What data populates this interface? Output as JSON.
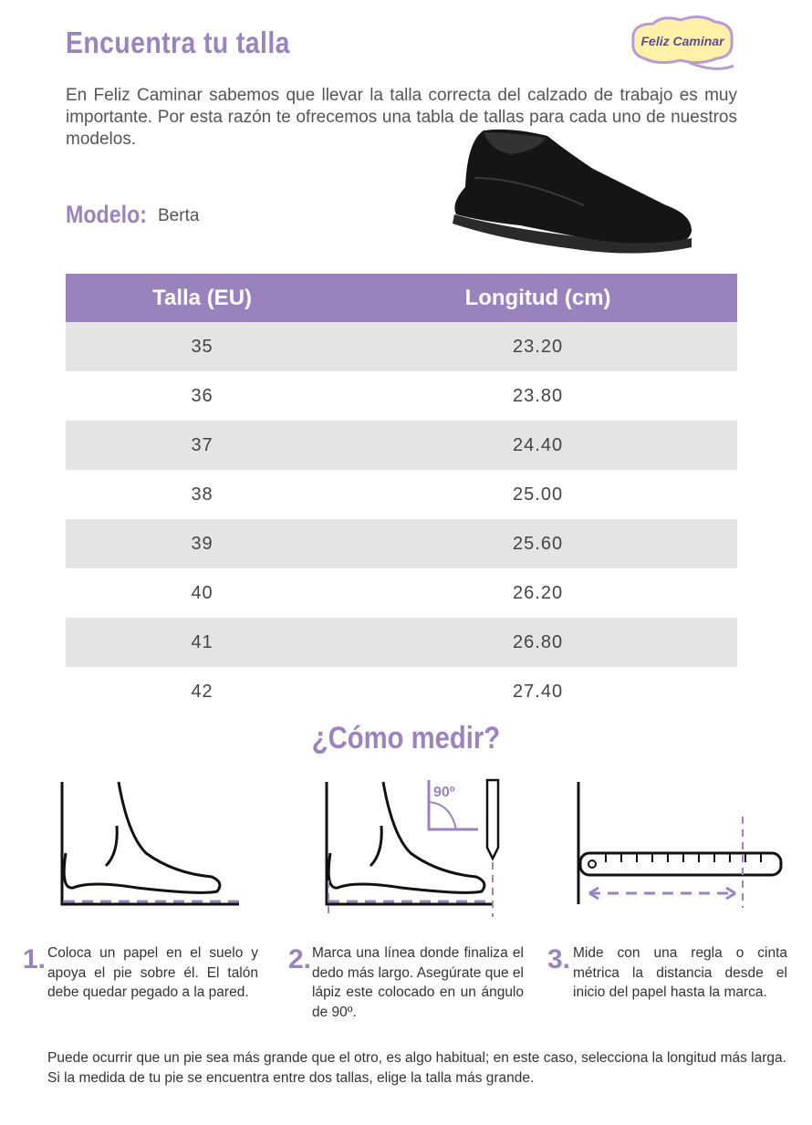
{
  "header": {
    "title": "Encuentra tu talla",
    "logo": "Feliz Caminar"
  },
  "intro": "En Feliz Caminar sabemos que llevar la talla correcta del calzado de trabajo es muy importante. Por esta razón te ofrecemos una tabla de tallas para cada uno de nuestros modelos.",
  "model": {
    "label": "Modelo:",
    "name": "Berta"
  },
  "table": {
    "headers": [
      "Talla (EU)",
      "Longitud (cm)"
    ],
    "rows": [
      [
        "35",
        "23.20"
      ],
      [
        "36",
        "23.80"
      ],
      [
        "37",
        "24.40"
      ],
      [
        "38",
        "25.00"
      ],
      [
        "39",
        "25.60"
      ],
      [
        "40",
        "26.20"
      ],
      [
        "41",
        "26.80"
      ],
      [
        "42",
        "27.40"
      ]
    ]
  },
  "howto": {
    "title": "¿Cómo medir?",
    "angle_label": "90º",
    "steps": [
      {
        "number": "1.",
        "text": "Coloca un papel en el suelo y apoya el pie sobre él. El talón debe quedar pegado a la pared."
      },
      {
        "number": "2.",
        "text": "Marca una línea donde finaliza el dedo más largo. Asegúrate que el lápiz este colocado en un ángulo de 90º."
      },
      {
        "number": "3.",
        "text": "Mide con una regla o cinta métrica la distancia desde el inicio del papel hasta la marca."
      }
    ]
  },
  "footer": "Puede ocurrir que un pie sea más grande que el otro, es algo habitual; en este caso, selecciona la longitud más larga. Si la medida de tu pie se encuentra entre dos tallas, elige la talla más grande."
}
